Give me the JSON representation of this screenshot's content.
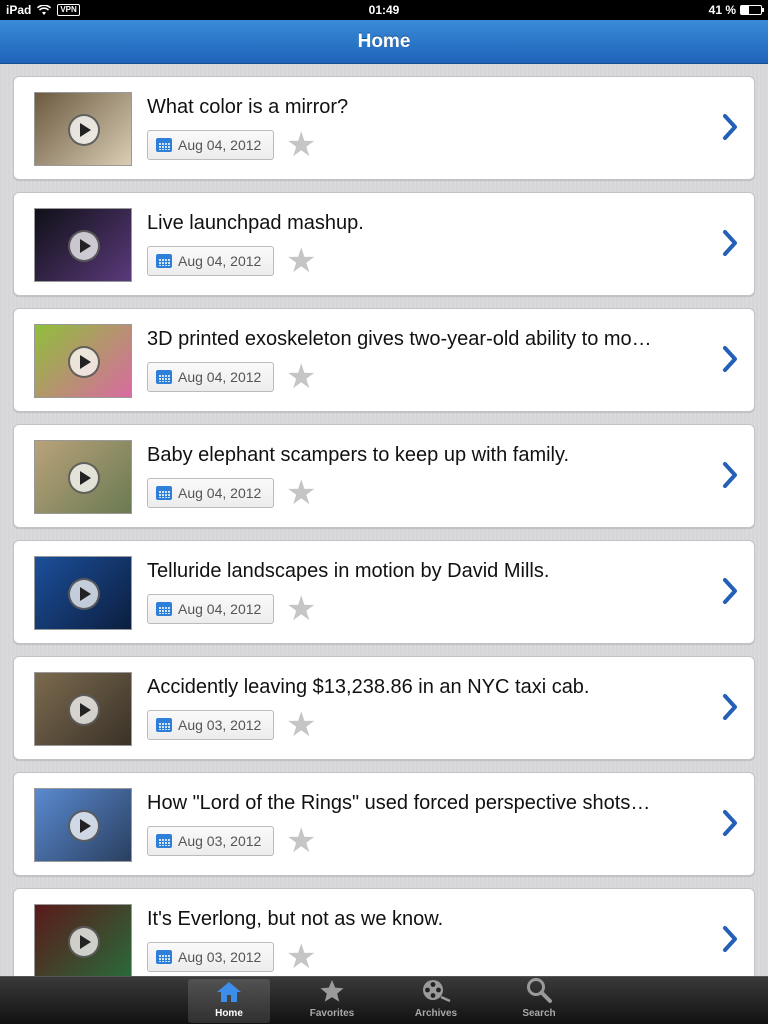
{
  "status_bar": {
    "device": "iPad",
    "vpn": "VPN",
    "time": "01:49",
    "battery": "41 %",
    "battery_level": 0.41
  },
  "nav": {
    "title": "Home"
  },
  "items": [
    {
      "title": "What color is a mirror?",
      "date": "Aug 04, 2012",
      "thumb_colors": [
        "#6b5a40",
        "#d9cdb4"
      ]
    },
    {
      "title": "Live launchpad mashup.",
      "date": "Aug 04, 2012",
      "thumb_colors": [
        "#101018",
        "#5a3a7a"
      ]
    },
    {
      "title": "3D printed exoskeleton gives two-year-old ability to mo…",
      "date": "Aug 04, 2012",
      "thumb_colors": [
        "#8fbf3a",
        "#d96aa0"
      ]
    },
    {
      "title": "Baby elephant scampers to keep up with family.",
      "date": "Aug 04, 2012",
      "thumb_colors": [
        "#b9a27a",
        "#6a7a52"
      ]
    },
    {
      "title": "Telluride landscapes in motion by David Mills.",
      "date": "Aug 04, 2012",
      "thumb_colors": [
        "#1c4f9a",
        "#0b1e3f"
      ]
    },
    {
      "title": "Accidently leaving $13,238.86 in an NYC taxi cab.",
      "date": "Aug 03, 2012",
      "thumb_colors": [
        "#7b6a4e",
        "#3a3228"
      ]
    },
    {
      "title": "How \"Lord of the Rings\" used forced perspective shots…",
      "date": "Aug 03, 2012",
      "thumb_colors": [
        "#5a8ad0",
        "#2a3f60"
      ]
    },
    {
      "title": "It's Everlong, but not as we know.",
      "date": "Aug 03, 2012",
      "thumb_colors": [
        "#5a1a1a",
        "#2a6a3a"
      ]
    }
  ],
  "tabs": [
    {
      "label": "Home",
      "icon": "home-icon",
      "active": true
    },
    {
      "label": "Favorites",
      "icon": "star-icon",
      "active": false
    },
    {
      "label": "Archives",
      "icon": "film-reel-icon",
      "active": false
    },
    {
      "label": "Search",
      "icon": "search-icon",
      "active": false
    }
  ],
  "colors": {
    "nav_top": "#3a8bd9",
    "nav_bottom": "#1e63b8",
    "chevron": "#2460b8",
    "tab_active_icon": "#3d8eea"
  }
}
